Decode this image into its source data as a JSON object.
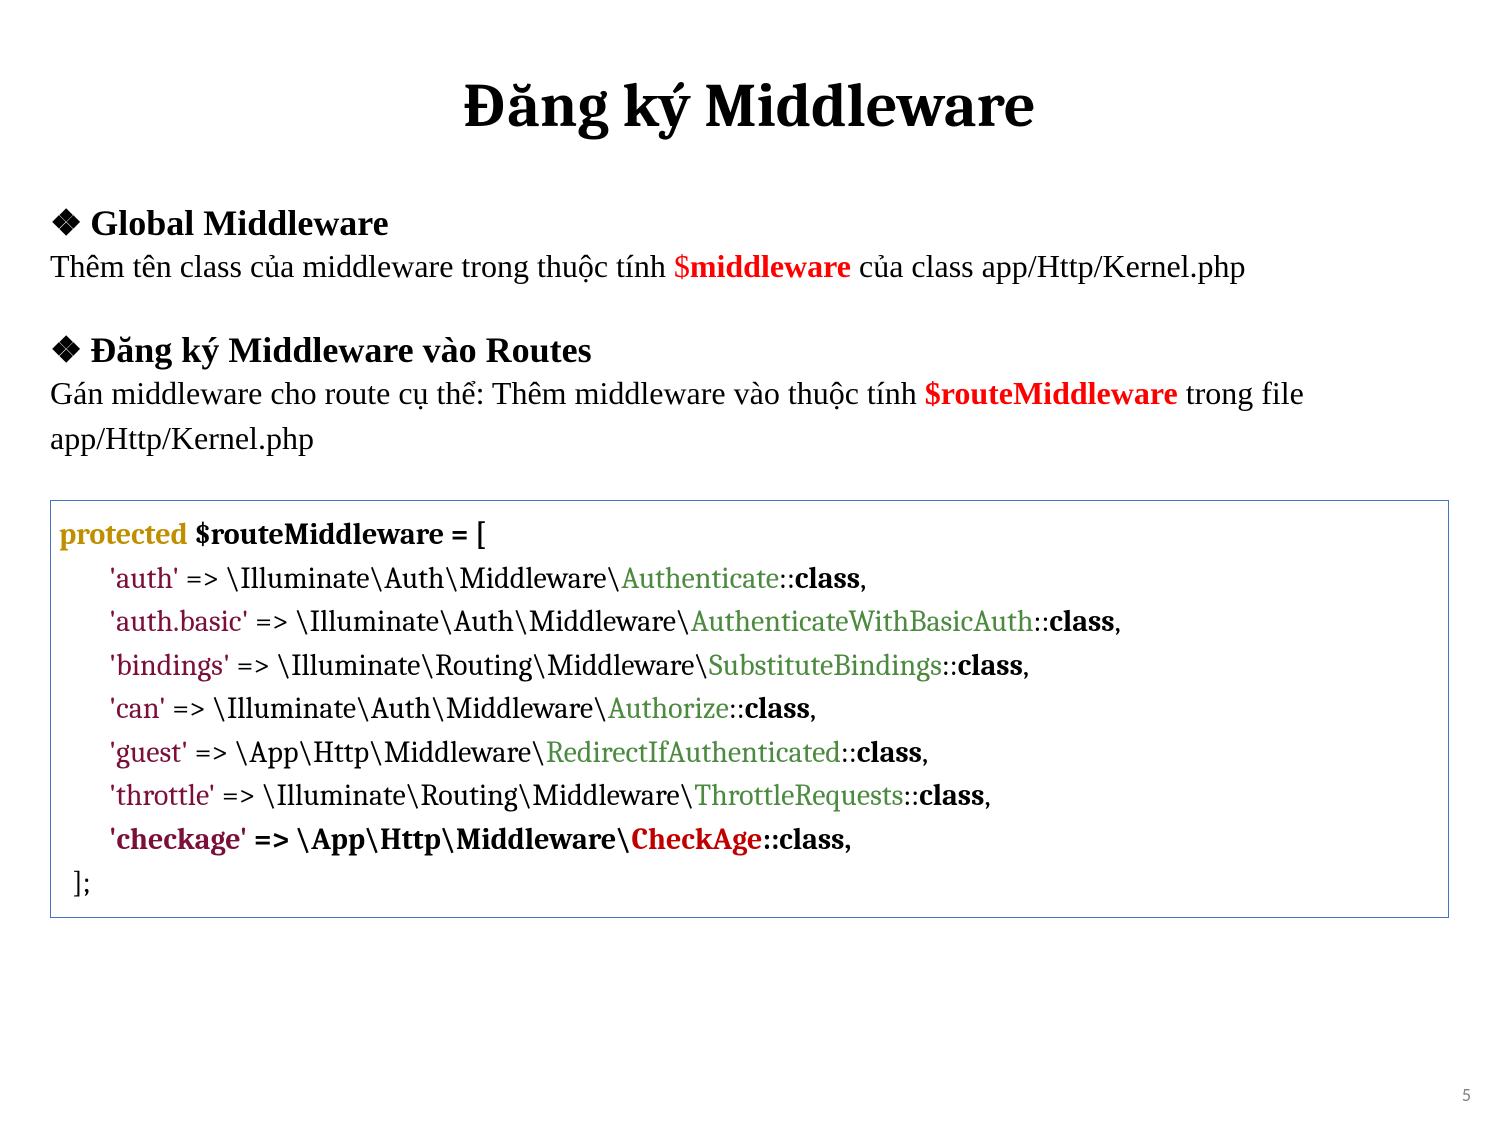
{
  "title": "Đăng ký Middleware",
  "section1": {
    "heading": "Global Middleware",
    "bullet": "❖",
    "body_pre": "Thêm tên class của middleware trong thuộc tính ",
    "body_dollar": "$",
    "body_mw": "middleware",
    "body_post": " của class app/Http/Kernel.php"
  },
  "section2": {
    "heading": "Đăng ký Middleware vào Routes",
    "bullet": "❖",
    "body_pre": "Gán middleware cho route cụ thể: Thêm middleware vào thuộc tính ",
    "body_var": "$routeMiddleware",
    "body_post": " trong file app/Http/Kernel.php"
  },
  "code": {
    "l1_kw": "protected",
    "l1_var": " $routeMiddleware = [",
    "entries": [
      {
        "key": "'auth'",
        "arrow": " => ",
        "ns": "\\Illuminate\\Auth\\Middleware\\",
        "cls": "Authenticate",
        "tail": "::",
        "classkw": "class",
        "comma": ",",
        "bold": false
      },
      {
        "key": "'auth.basic'",
        "arrow": " => ",
        "ns": "\\Illuminate\\Auth\\Middleware\\",
        "cls": "AuthenticateWithBasicAuth",
        "tail": "::",
        "classkw": "class",
        "comma": ",",
        "bold": false
      },
      {
        "key": "'bindings'",
        "arrow": " => ",
        "ns": "\\Illuminate\\Routing\\Middleware\\",
        "cls": "SubstituteBindings",
        "tail": "::",
        "classkw": "class",
        "comma": ",",
        "bold": false
      },
      {
        "key": "'can'",
        "arrow": " => ",
        "ns": "\\Illuminate\\Auth\\Middleware\\",
        "cls": "Authorize",
        "tail": "::",
        "classkw": "class",
        "comma": ",",
        "bold": false
      },
      {
        "key": "'guest'",
        "arrow": " => ",
        "ns": "\\App\\Http\\Middleware\\",
        "cls": "RedirectIfAuthenticated",
        "tail": "::",
        "classkw": "class",
        "comma": ",",
        "bold": false
      },
      {
        "key": "'throttle'",
        "arrow": " => ",
        "ns": "\\Illuminate\\Routing\\Middleware\\",
        "cls": "ThrottleRequests",
        "tail": "::",
        "classkw": "class",
        "comma": ",",
        "bold": false
      },
      {
        "key": "'checkage'",
        "arrow": " => ",
        "ns": "\\App\\Http\\Middleware\\",
        "cls": "CheckAge",
        "tail": "::",
        "classkw": "class",
        "comma": ",",
        "bold": true
      }
    ],
    "close": "  ];"
  },
  "page_number": "5",
  "colors": {
    "border": "#4472c4",
    "protected": "#bf8f00",
    "string": "#7b0f3a",
    "classname": "#4b8a3f",
    "classname_red": "#c00000",
    "red": "#ff0000",
    "page_num": "#808080"
  }
}
